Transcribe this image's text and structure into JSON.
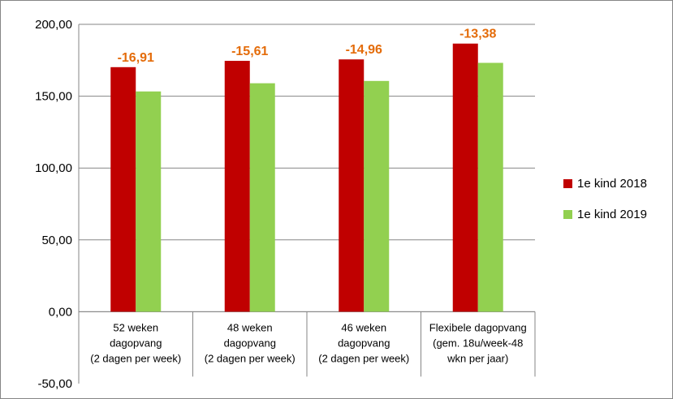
{
  "chart_data": {
    "type": "bar",
    "categories": [
      [
        "52 weken",
        "dagopvang",
        "(2 dagen per week)"
      ],
      [
        "48 weken",
        "dagopvang",
        "(2 dagen per week)"
      ],
      [
        "46 weken",
        "dagopvang",
        "(2 dagen per week)"
      ],
      [
        "Flexibele dagopvang",
        "(gem. 18u/week-48",
        "wkn per jaar)"
      ]
    ],
    "series": [
      {
        "name": "1e kind 2018",
        "color": "#c00000",
        "values": [
          170.2,
          174.6,
          175.6,
          186.6
        ]
      },
      {
        "name": "1e kind 2019",
        "color": "#92d050",
        "values": [
          153.3,
          159.0,
          160.6,
          173.2
        ]
      }
    ],
    "difference_labels": [
      "-16,91",
      "-15,61",
      "-14,96",
      "-13,38"
    ],
    "difference_label_color": "#e46c0a",
    "y_ticks": [
      "-50,00",
      "0,00",
      "50,00",
      "100,00",
      "150,00",
      "200,00"
    ],
    "y_tick_values": [
      -50,
      0,
      50,
      100,
      150,
      200
    ],
    "ylim": [
      -50,
      200
    ],
    "grid": true,
    "legend_position": "right",
    "title": "",
    "xlabel": "",
    "ylabel": ""
  }
}
